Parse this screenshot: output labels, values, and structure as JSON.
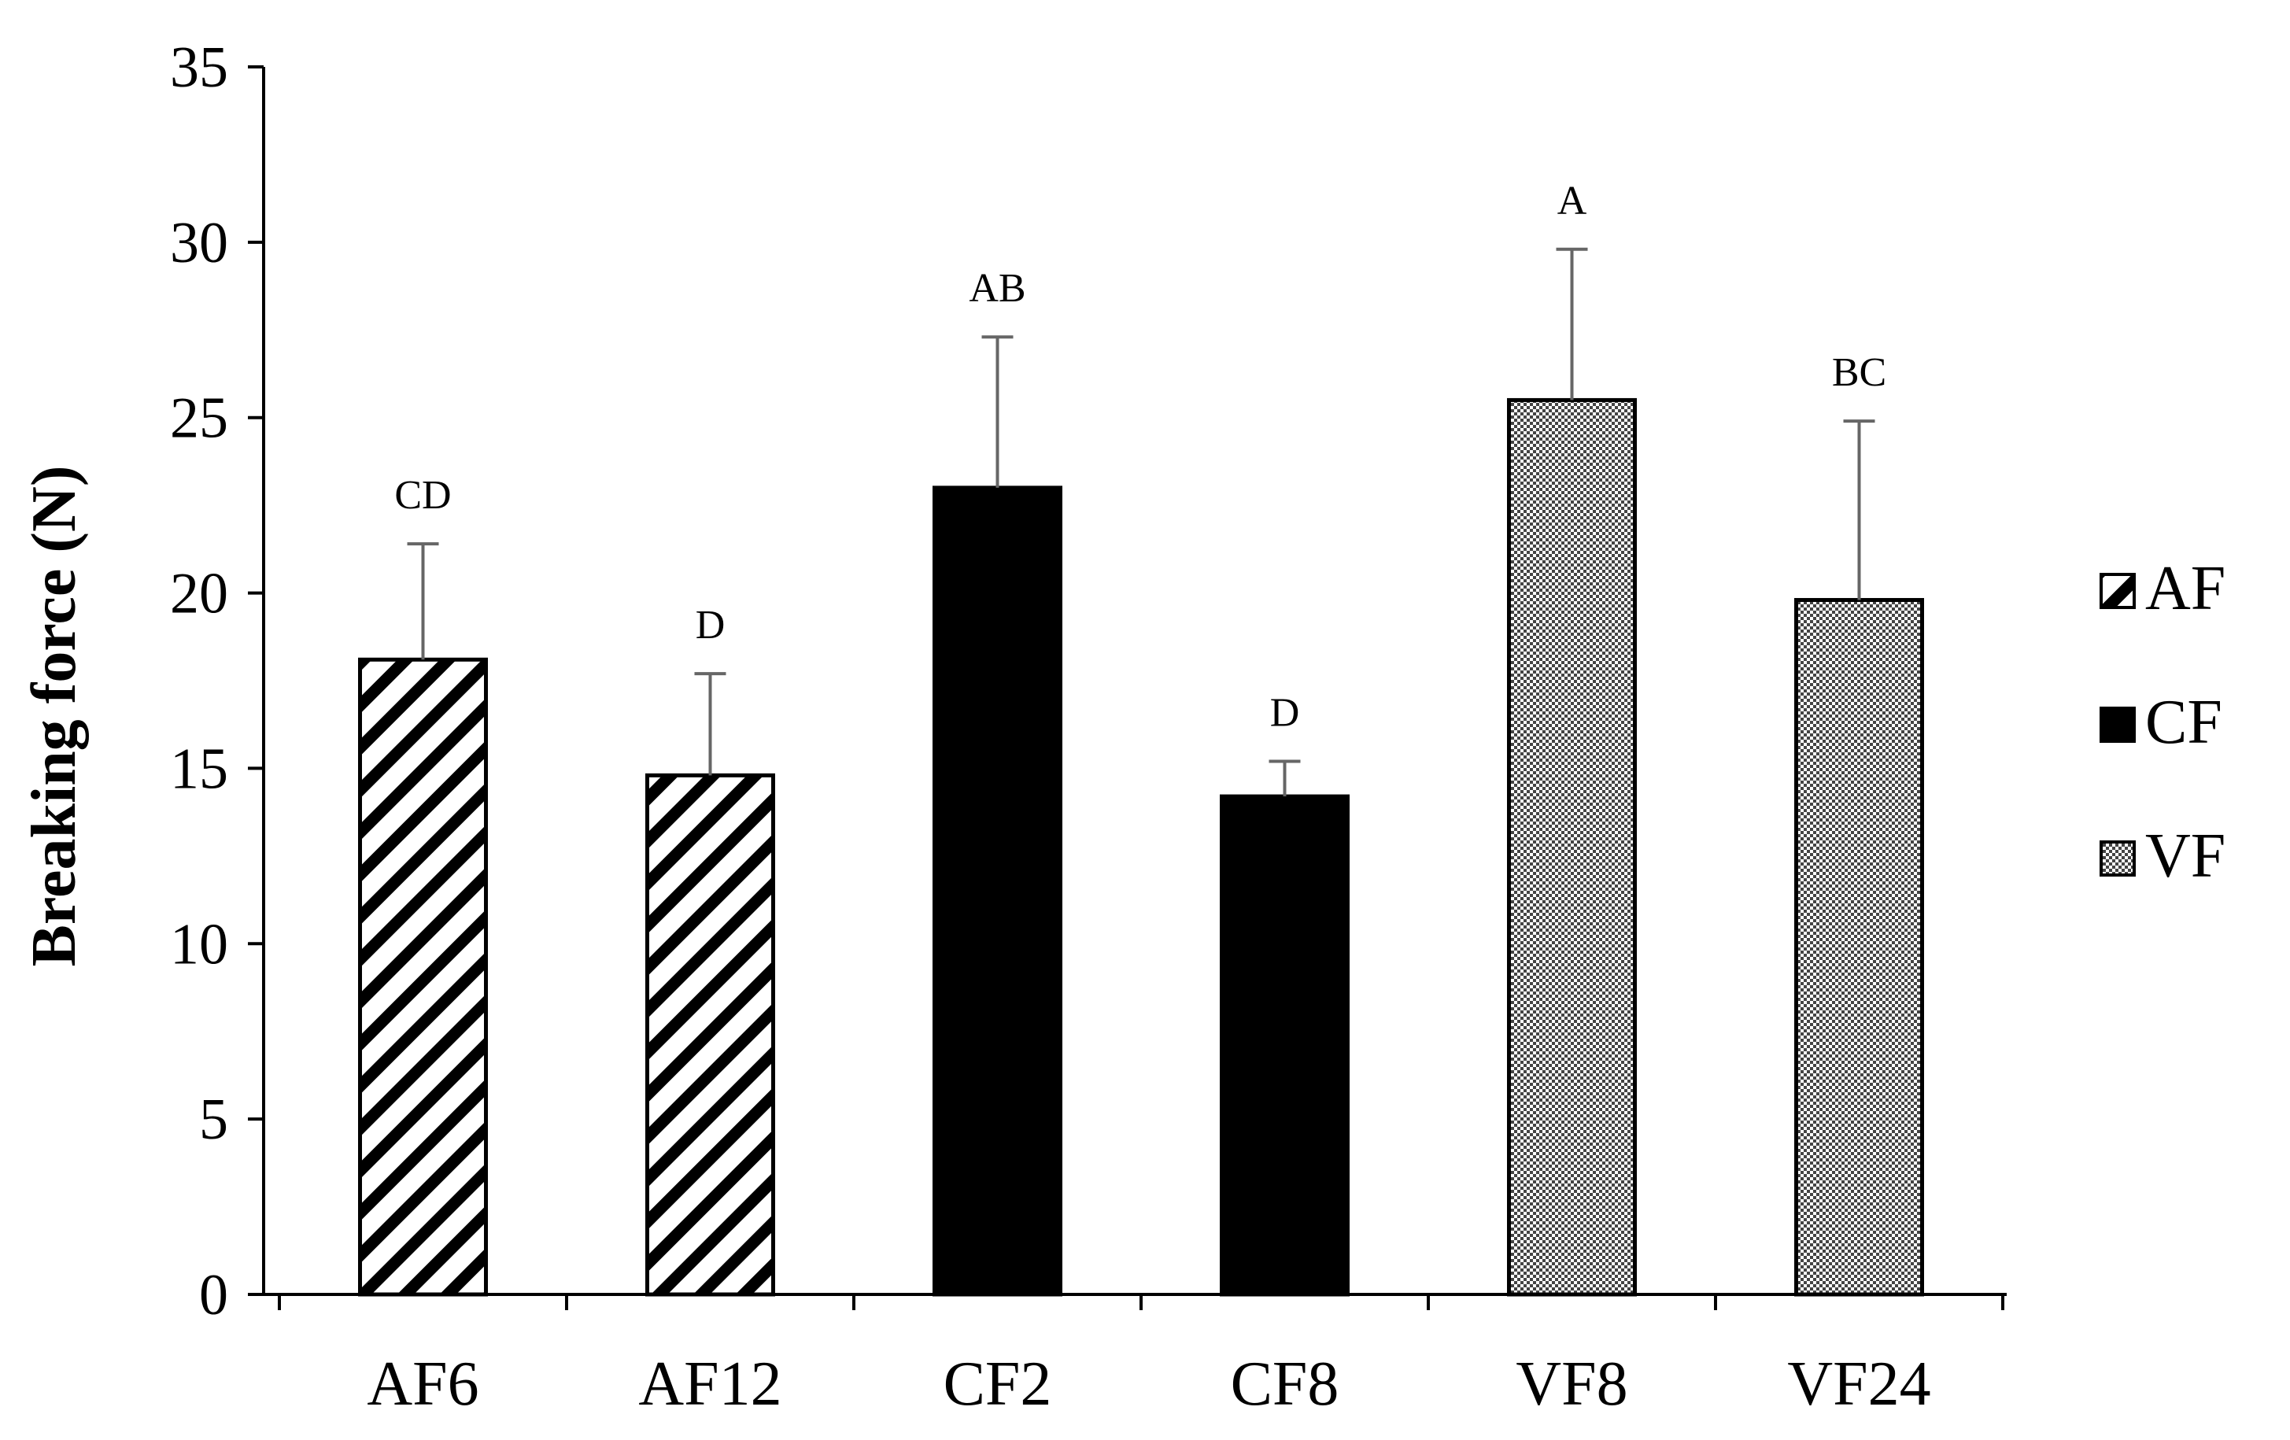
{
  "chart_data": {
    "type": "bar",
    "title": "",
    "xlabel": "",
    "ylabel": "Breaking  force (N)",
    "ylim": [
      0,
      35
    ],
    "yticks": [
      0,
      5,
      10,
      15,
      20,
      25,
      30,
      35
    ],
    "grid": false,
    "legend_position": "right",
    "categories": [
      "AF6",
      "AF12",
      "CF2",
      "CF8",
      "VF8",
      "VF24"
    ],
    "values": [
      18.1,
      14.8,
      23.0,
      14.2,
      25.5,
      19.8
    ],
    "errors": [
      3.3,
      2.9,
      4.3,
      1.0,
      4.3,
      5.1
    ],
    "significance": [
      "CD",
      "D",
      "AB",
      "D",
      "A",
      "BC"
    ],
    "groups": [
      "AF",
      "AF",
      "CF",
      "CF",
      "VF",
      "VF"
    ],
    "legend": [
      {
        "name": "AF",
        "pattern": "diagonal-stripes"
      },
      {
        "name": "CF",
        "pattern": "solid-black"
      },
      {
        "name": "VF",
        "pattern": "checker"
      }
    ],
    "colors": {
      "bar_fill": "#000000",
      "bar_bg": "#ffffff",
      "error_bar": "#666666",
      "axis": "#000000"
    }
  }
}
